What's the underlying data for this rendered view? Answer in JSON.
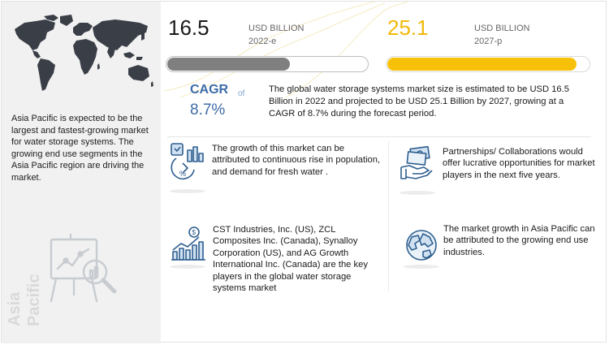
{
  "region": {
    "description": "Asia Pacific is expected to be the largest and fastest-growing market for water storage systems. The growing end use segments in the Asia Pacific region are driving the market.",
    "vertical_label_line1": "Asia",
    "vertical_label_line2": "Pacific"
  },
  "metrics": {
    "value_2022": "16.5",
    "unit_2022": "USD BILLION",
    "year_2022": "2022-e",
    "value_2027": "25.1",
    "unit_2027": "USD BILLION",
    "year_2027": "2027-p",
    "bar_2022_fraction": 0.61,
    "bar_2027_fraction": 0.93
  },
  "cagr": {
    "label": "CAGR",
    "of_text": "of",
    "value": "8.7%"
  },
  "summary": "The global water storage systems market size is estimated to be USD 16.5 Billion in 2022 and projected to be USD 25.1 Billion by 2027, growing at a CAGR of 8.7% during the forecast period.",
  "cards": [
    {
      "icon": "growth-analytics-icon",
      "text": "The growth of this market can be attributed to continuous rise in population, and demand for fresh water ."
    },
    {
      "icon": "partnership-money-icon",
      "text": "Partnerships/ Collaborations would offer lucrative opportunities for market players in the next five years."
    },
    {
      "icon": "market-players-chart-icon",
      "text": "CST Industries, Inc. (US), ZCL Composites Inc. (Canada), Synalloy Corporation (US), and AG Growth International Inc. (Canada) are the key players in the global water storage systems market"
    },
    {
      "icon": "globe-icon",
      "text": "The market growth in Asia Pacific can be attributed to the growing end use industries."
    }
  ],
  "colors": {
    "accent_yellow": "#f7c10a",
    "bar_gray": "#7f7f7f",
    "cagr_blue": "#3d6ca8",
    "map_dark": "#3a3f47",
    "illustration_gray": "#c8ccd1"
  }
}
